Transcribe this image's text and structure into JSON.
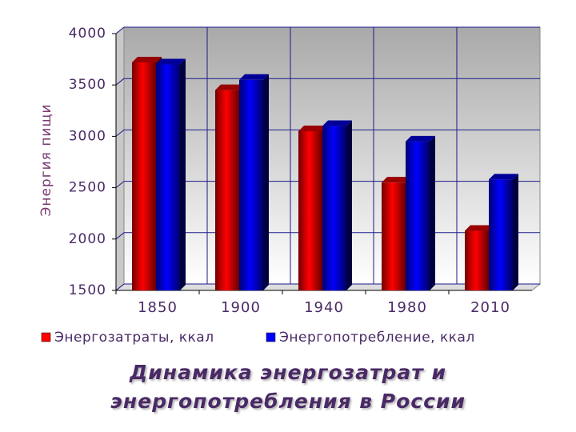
{
  "chart_data": {
    "type": "bar3d",
    "title": "Динамика энергозатрат и энергопотребления в России",
    "y_label": "Энергия пищи",
    "categories": [
      "1850",
      "1900",
      "1940",
      "1980",
      "2010"
    ],
    "series": [
      {
        "name": "Энергозатраты, ккал",
        "color": "#ff0000",
        "values": [
          3720,
          3450,
          3050,
          2550,
          2080
        ]
      },
      {
        "name": "Энергопотребление, ккал",
        "color": "#0000ff",
        "values": [
          3700,
          3550,
          3100,
          2950,
          2580
        ]
      }
    ],
    "ylim": [
      1500,
      4000
    ],
    "yticks": [
      1500,
      2000,
      2500,
      3000,
      3500,
      4000
    ],
    "grid": true,
    "legend": "bottom"
  }
}
